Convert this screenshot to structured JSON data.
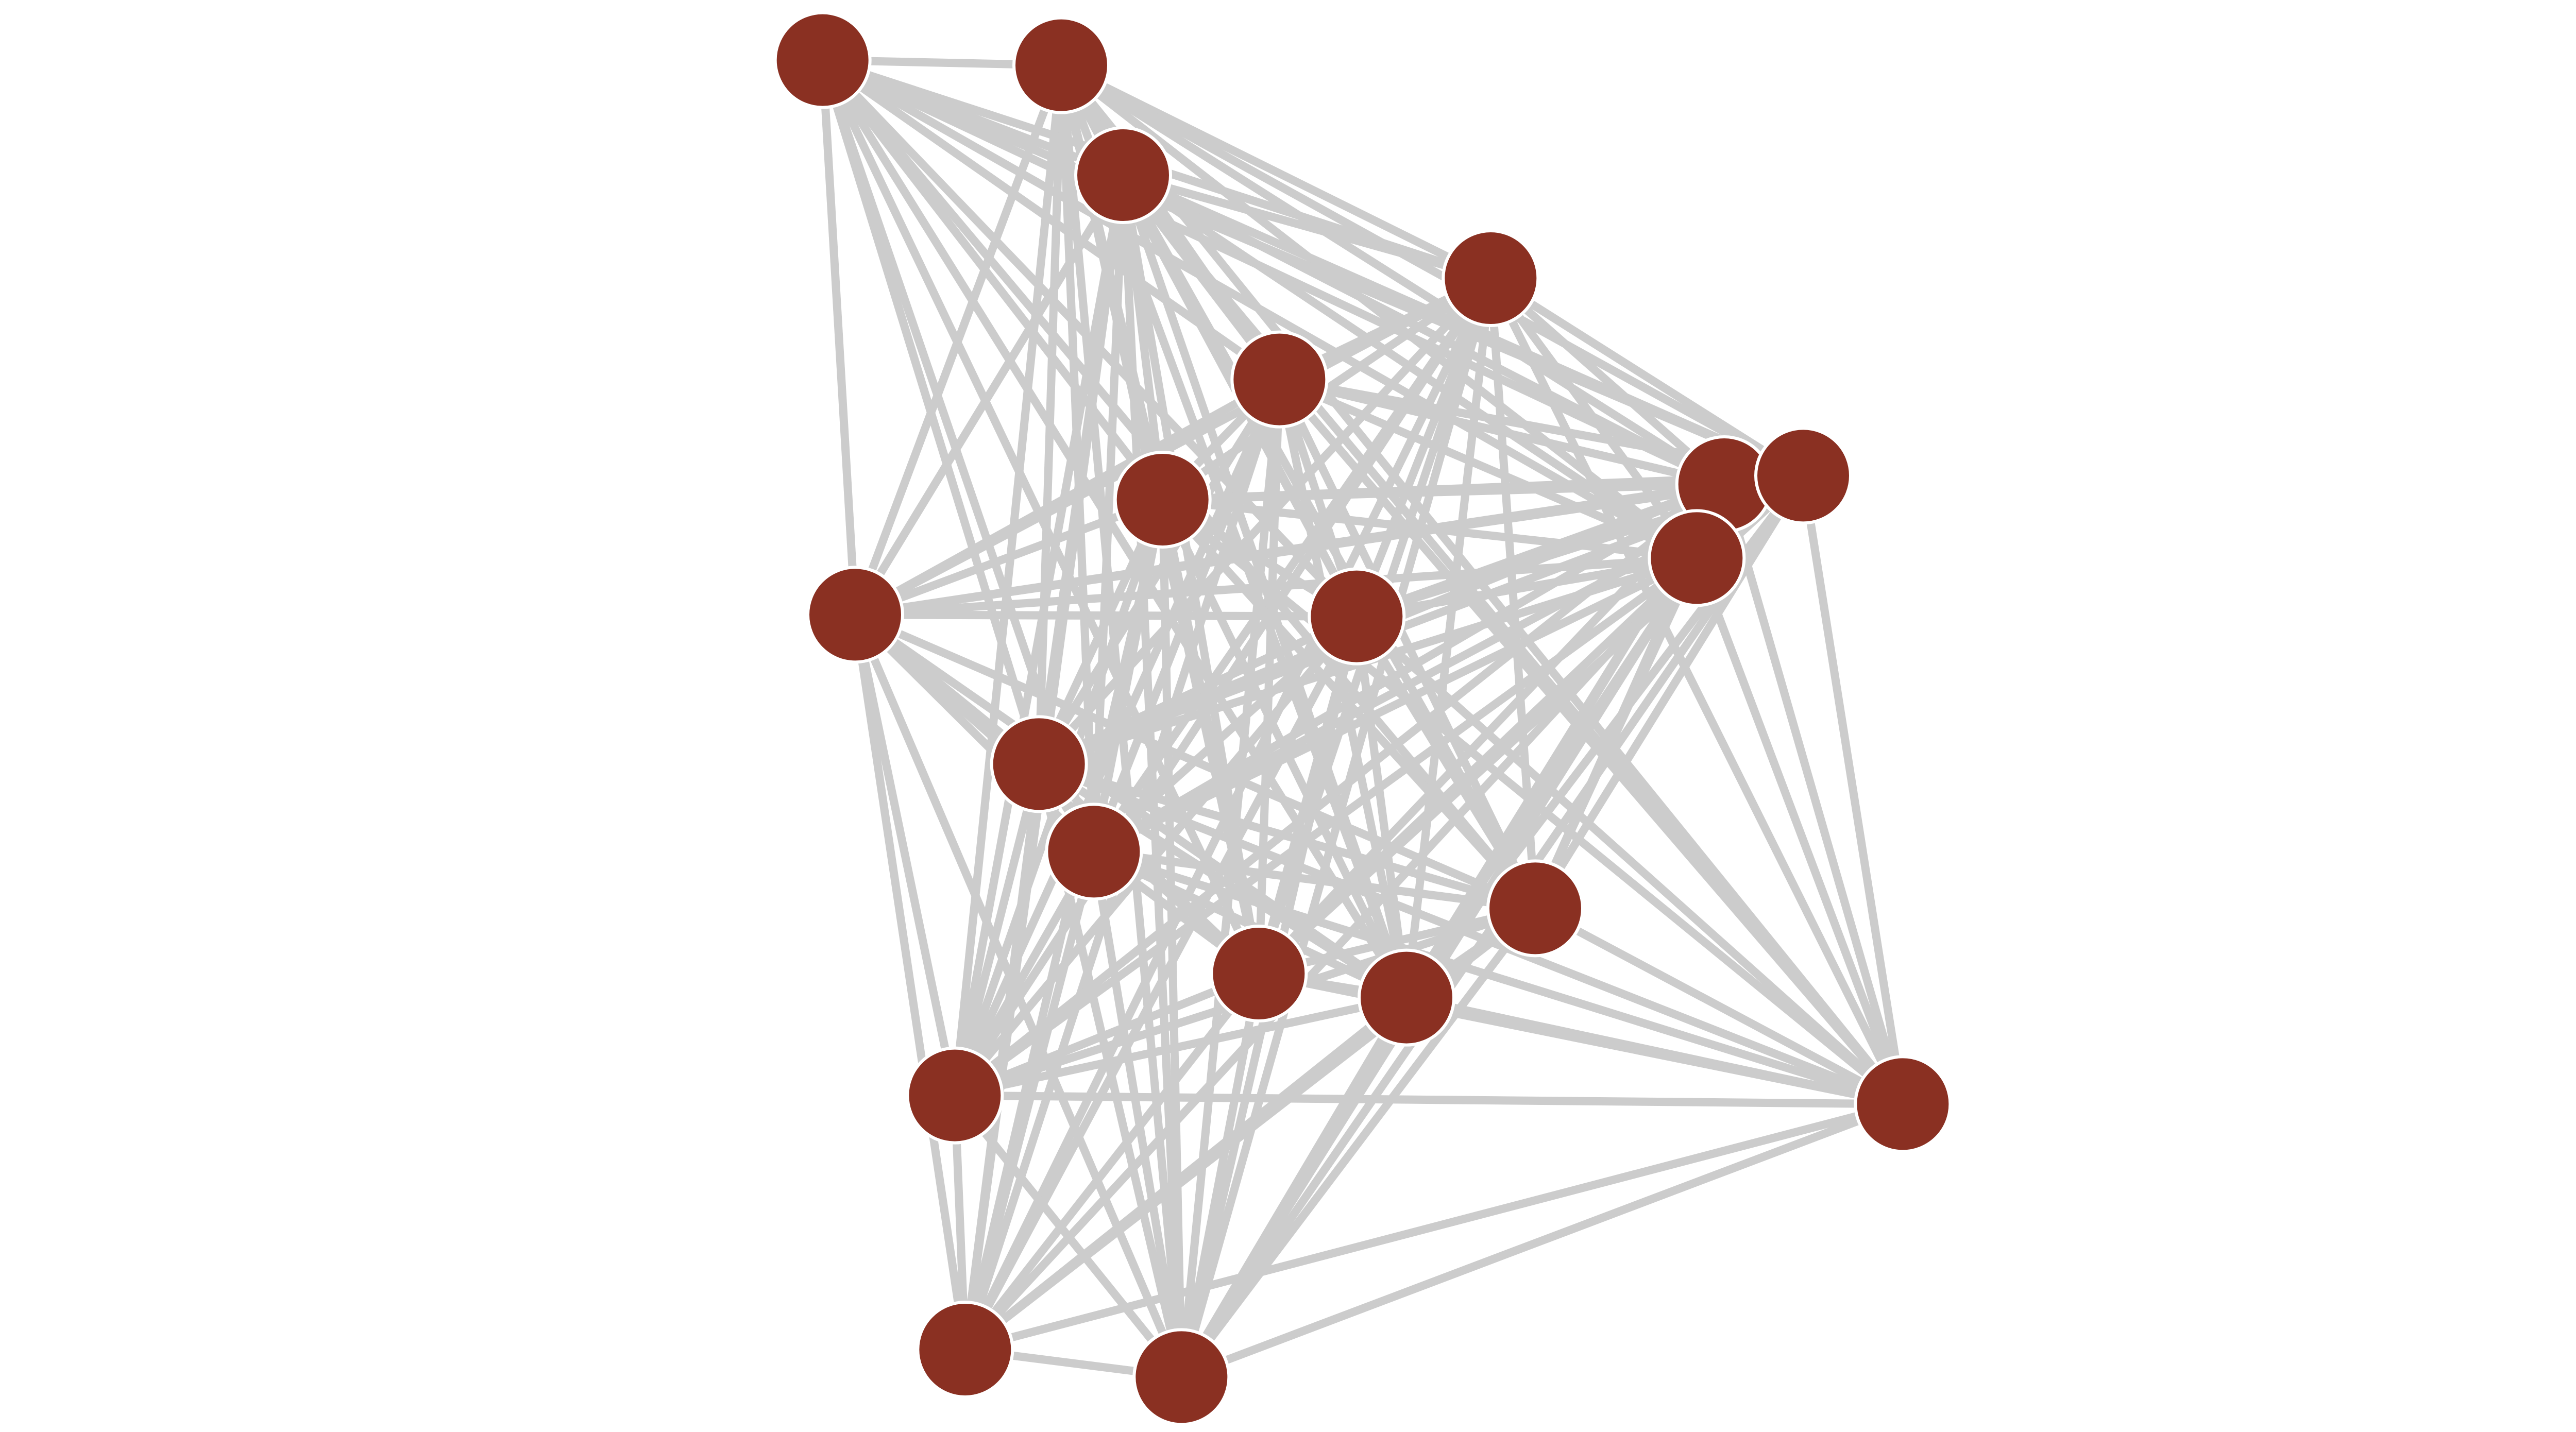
{
  "diagram": {
    "type": "network",
    "node_color": "#8a3022",
    "node_outline_color": "#ffffff",
    "edge_color": "#cccccc",
    "nodes": [
      "1",
      "2",
      "3",
      "4",
      "5",
      "6",
      "7",
      "8",
      "9",
      "10",
      "11",
      "12",
      "13",
      "14",
      "15",
      "16",
      "17",
      "18",
      "19",
      "20"
    ],
    "adjacency": {
      "1": [
        2,
        3,
        4,
        5,
        6,
        7,
        8,
        9,
        10,
        11,
        12,
        13,
        14,
        15,
        16
      ],
      "2": [
        3,
        4,
        5,
        6,
        7,
        8,
        9,
        10,
        11,
        12,
        13,
        14,
        15,
        16,
        17,
        18,
        20
      ],
      "3": [
        4,
        5,
        6,
        7,
        8,
        9,
        10,
        11,
        12,
        13,
        14,
        15,
        16,
        17,
        18,
        19,
        20
      ],
      "4": [
        5,
        6,
        7,
        8,
        9,
        10,
        11,
        12,
        13,
        14,
        15,
        16,
        17,
        18,
        19,
        20
      ],
      "5": [
        6,
        7,
        8,
        9,
        10,
        11,
        12,
        13,
        14,
        15,
        16,
        17,
        18,
        19,
        20
      ],
      "6": [
        7,
        8,
        9,
        10,
        11,
        12,
        13,
        14,
        15,
        16,
        17,
        18,
        19,
        20
      ],
      "7": [
        8,
        9,
        10,
        11,
        12,
        13,
        14,
        15,
        16,
        17,
        18,
        20
      ],
      "8": [
        9,
        10,
        11,
        12,
        13,
        14,
        15,
        16,
        18,
        20
      ],
      "9": [
        10,
        11,
        12,
        13,
        14,
        15,
        16,
        17,
        18,
        19,
        20
      ],
      "10": [
        11,
        12,
        13,
        14,
        15,
        16,
        17,
        19,
        20
      ],
      "11": [
        12,
        13,
        14,
        15,
        16,
        17,
        18,
        19,
        20
      ],
      "12": [
        13,
        14,
        15,
        16,
        17,
        18,
        19,
        20
      ],
      "13": [
        14,
        15,
        16,
        17,
        18,
        19,
        20
      ],
      "14": [
        15,
        16,
        17,
        18,
        19,
        20
      ],
      "15": [
        16,
        17,
        18,
        19,
        20
      ],
      "16": [
        17,
        18,
        19,
        20
      ],
      "17": [
        18,
        19,
        20
      ],
      "18": [
        19,
        20
      ],
      "19": [
        20
      ],
      "20": []
    }
  }
}
